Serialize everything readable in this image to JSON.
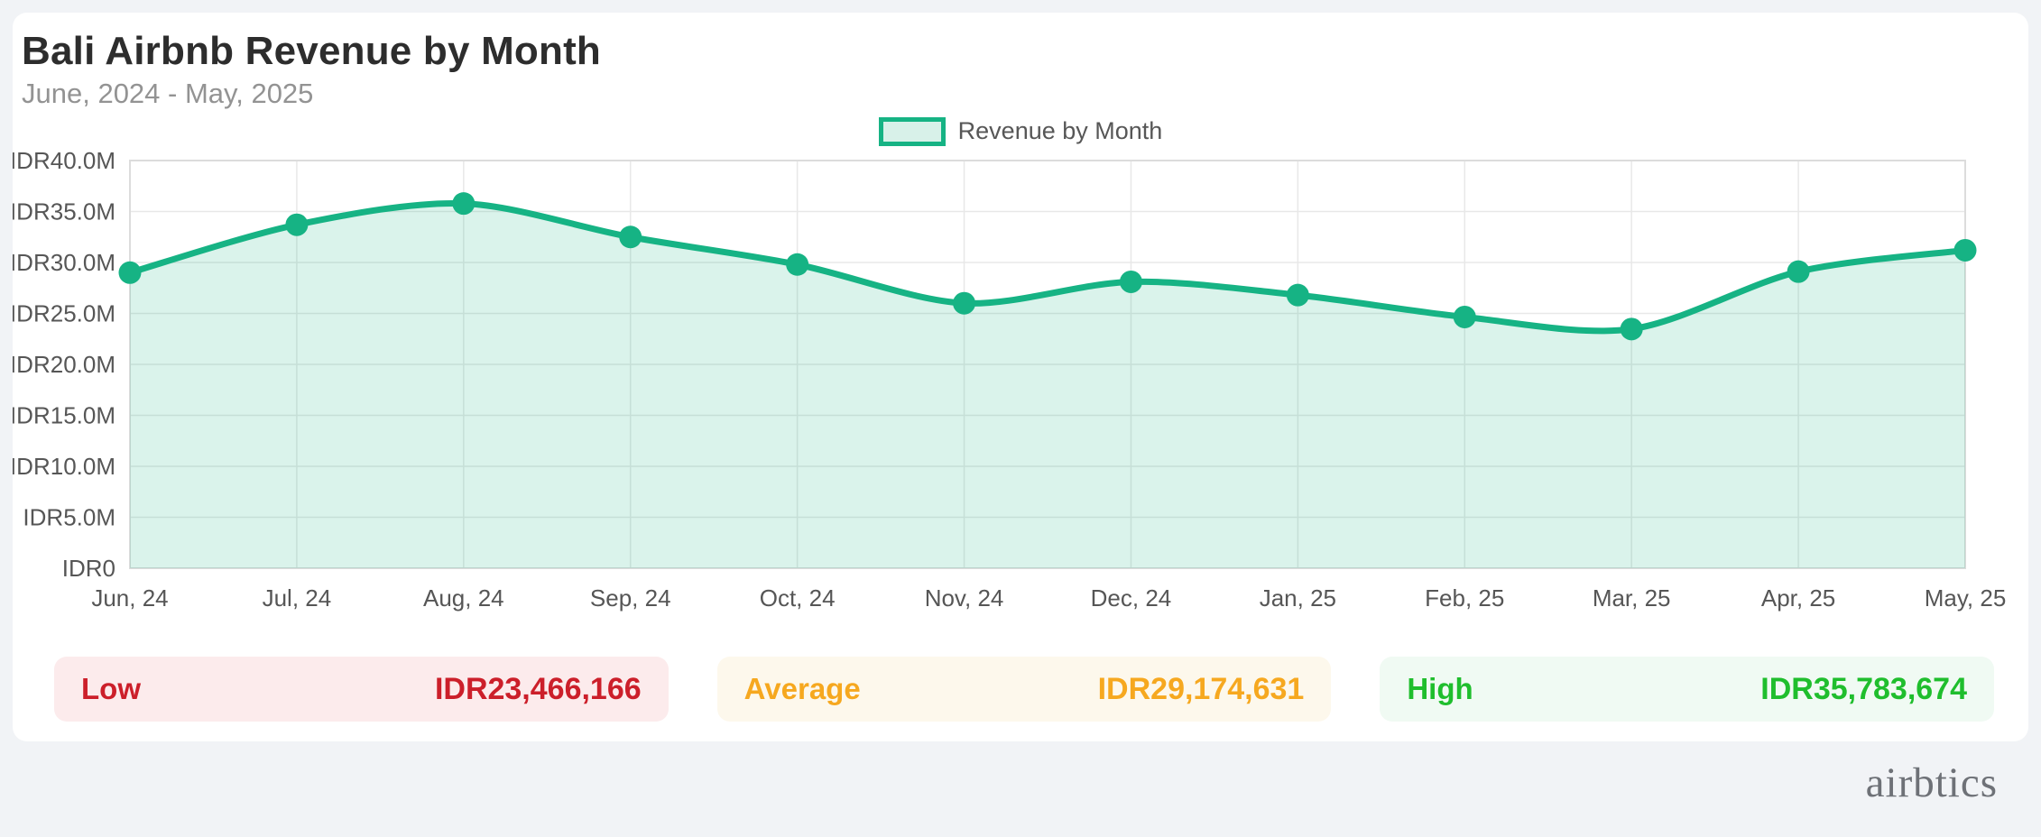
{
  "header": {
    "title": "Bali Airbnb Revenue by Month",
    "subtitle": "June, 2024 - May, 2025"
  },
  "legend": {
    "label": "Revenue by Month"
  },
  "chart_data": {
    "type": "area",
    "title": "Bali Airbnb Revenue by Month",
    "xlabel": "",
    "ylabel": "",
    "categories": [
      "Jun, 24",
      "Jul, 24",
      "Aug, 24",
      "Sep, 24",
      "Oct, 24",
      "Nov, 24",
      "Dec, 24",
      "Jan, 25",
      "Feb, 25",
      "Mar, 25",
      "Apr, 25",
      "May, 25"
    ],
    "series": [
      {
        "name": "Revenue by Month",
        "values": [
          29000000,
          33700000,
          35783674,
          32500000,
          29800000,
          26000000,
          28100000,
          26800000,
          24650000,
          23466166,
          29100000,
          31200000
        ]
      }
    ],
    "ylim": [
      0,
      40000000
    ],
    "y_tick_step": 5000000,
    "y_tick_labels": [
      "IDR0",
      "IDR5.0M",
      "IDR10.0M",
      "IDR15.0M",
      "IDR20.0M",
      "IDR25.0M",
      "IDR30.0M",
      "IDR35.0M",
      "IDR40.0M"
    ],
    "grid": true,
    "legend_position": "top",
    "line_color": "#16b384",
    "fill_color": "rgba(22,179,132,0.16)",
    "grid_color": "#e8e8e8",
    "border_color": "#dcdcdc"
  },
  "stats": {
    "low": {
      "label": "Low",
      "value": "IDR23,466,166",
      "text_color": "#cc1f2a",
      "bg_color": "#fcebec"
    },
    "average": {
      "label": "Average",
      "value": "IDR29,174,631",
      "text_color": "#f6a81f",
      "bg_color": "#fdf8ec"
    },
    "high": {
      "label": "High",
      "value": "IDR35,783,674",
      "text_color": "#1fbe2d",
      "bg_color": "#f0faf3"
    }
  },
  "footer": {
    "logo_text": "airbtics"
  }
}
